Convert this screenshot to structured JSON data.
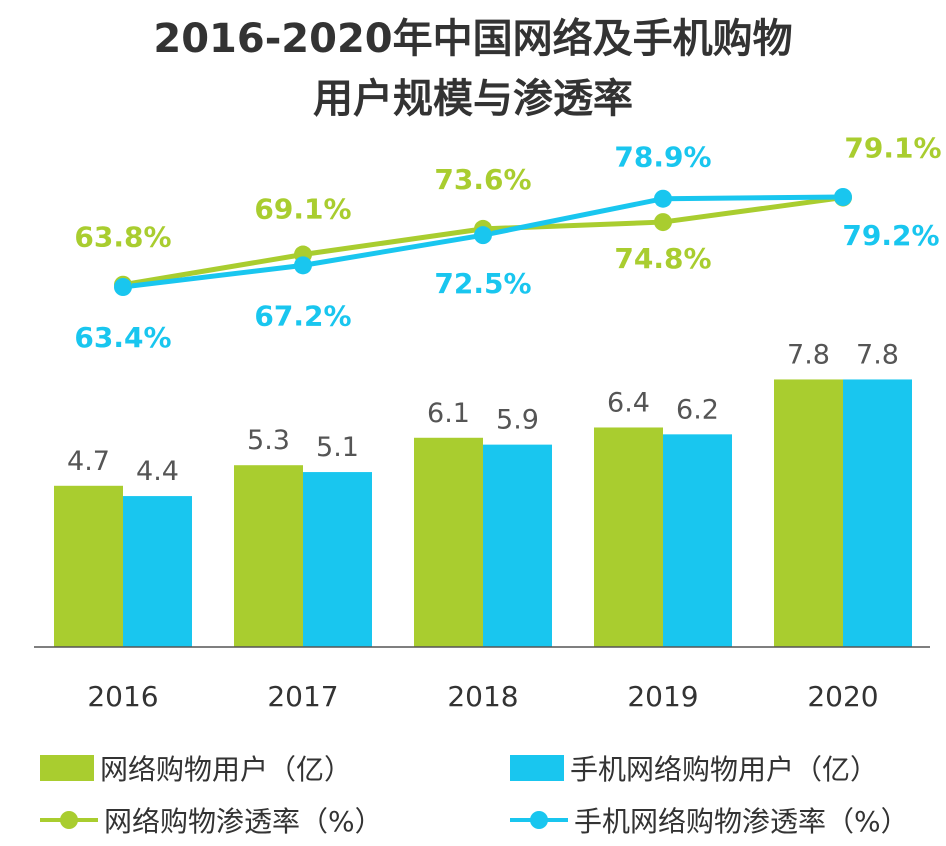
{
  "title_line1": "2016-2020年中国网络及手机购物",
  "title_line2": "用户规模与渗透率",
  "colors": {
    "green": "#a9cd2f",
    "blue": "#19c6ef",
    "axis": "#555555",
    "text": "#333333"
  },
  "chart_data": {
    "type": "bar",
    "categories": [
      "2016",
      "2017",
      "2018",
      "2019",
      "2020"
    ],
    "series": [
      {
        "name": "网络购物用户（亿）",
        "type": "bar",
        "color": "#a9cd2f",
        "values": [
          4.7,
          5.3,
          6.1,
          6.4,
          7.8
        ]
      },
      {
        "name": "手机网络购物用户（亿）",
        "type": "bar",
        "color": "#19c6ef",
        "values": [
          4.4,
          5.1,
          5.9,
          6.2,
          7.8
        ]
      },
      {
        "name": "网络购物渗透率（%）",
        "type": "line",
        "color": "#a9cd2f",
        "values": [
          63.8,
          69.1,
          73.6,
          74.8,
          79.1
        ]
      },
      {
        "name": "手机网络购物渗透率（%）",
        "type": "line",
        "color": "#19c6ef",
        "values": [
          63.4,
          67.2,
          72.5,
          78.9,
          79.2
        ]
      }
    ],
    "bar_labels": [
      [
        "4.7",
        "5.3",
        "6.1",
        "6.4",
        "7.8"
      ],
      [
        "4.4",
        "5.1",
        "5.9",
        "6.2",
        "7.8"
      ]
    ],
    "line_labels": [
      [
        "63.8%",
        "69.1%",
        "73.6%",
        "74.8%",
        "79.1%"
      ],
      [
        "63.4%",
        "67.2%",
        "72.5%",
        "78.9%",
        "79.2%"
      ]
    ],
    "legend": [
      {
        "label": "网络购物用户（亿）",
        "kind": "bar",
        "color": "#a9cd2f"
      },
      {
        "label": "手机网络购物用户（亿）",
        "kind": "bar",
        "color": "#19c6ef"
      },
      {
        "label": "网络购物渗透率（%）",
        "kind": "line",
        "color": "#a9cd2f"
      },
      {
        "label": "手机网络购物渗透率（%）",
        "kind": "line",
        "color": "#19c6ef"
      }
    ],
    "grid": false,
    "legend_position": "bottom"
  }
}
